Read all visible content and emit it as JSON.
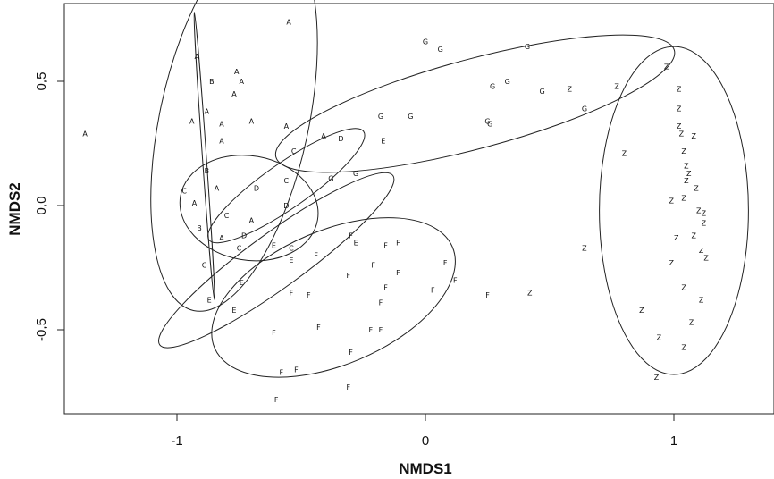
{
  "chart_data": {
    "type": "scatter",
    "title": "",
    "xlabel": "NMDS1",
    "ylabel": "NMDS2",
    "xlim": [
      -1.45,
      1.4
    ],
    "ylim": [
      -0.84,
      0.8
    ],
    "x_ticks": [
      -1,
      0,
      1
    ],
    "y_ticks": [
      -0.5,
      0.0,
      0.5
    ],
    "x_tick_labels": [
      "-1",
      "0",
      "1"
    ],
    "y_tick_labels": [
      "-0,5",
      "0,0",
      "0,5"
    ],
    "grid": false,
    "legend": "none",
    "groups": [
      "A",
      "B",
      "C",
      "D",
      "E",
      "F",
      "G",
      "Z"
    ],
    "points": [
      {
        "g": "A",
        "x": -1.37,
        "y": 0.29
      },
      {
        "g": "A",
        "x": -0.55,
        "y": 0.74
      },
      {
        "g": "A",
        "x": -0.92,
        "y": 0.6
      },
      {
        "g": "A",
        "x": -0.76,
        "y": 0.54
      },
      {
        "g": "A",
        "x": -0.74,
        "y": 0.5
      },
      {
        "g": "A",
        "x": -0.77,
        "y": 0.45
      },
      {
        "g": "A",
        "x": -0.94,
        "y": 0.34
      },
      {
        "g": "A",
        "x": -0.88,
        "y": 0.38
      },
      {
        "g": "A",
        "x": -0.82,
        "y": 0.33
      },
      {
        "g": "A",
        "x": -0.7,
        "y": 0.34
      },
      {
        "g": "A",
        "x": -0.56,
        "y": 0.32
      },
      {
        "g": "A",
        "x": -0.82,
        "y": 0.26
      },
      {
        "g": "A",
        "x": -0.84,
        "y": 0.07
      },
      {
        "g": "A",
        "x": -0.93,
        "y": 0.01
      },
      {
        "g": "A",
        "x": -0.7,
        "y": -0.06
      },
      {
        "g": "A",
        "x": -0.41,
        "y": 0.28
      },
      {
        "g": "A",
        "x": -0.82,
        "y": -0.13
      },
      {
        "g": "B",
        "x": -0.86,
        "y": 0.5
      },
      {
        "g": "B",
        "x": -0.88,
        "y": 0.14
      },
      {
        "g": "B",
        "x": -0.91,
        "y": -0.09
      },
      {
        "g": "C",
        "x": -0.97,
        "y": 0.06
      },
      {
        "g": "C",
        "x": -0.53,
        "y": 0.22
      },
      {
        "g": "C",
        "x": -0.56,
        "y": 0.1
      },
      {
        "g": "C",
        "x": -0.8,
        "y": -0.04
      },
      {
        "g": "C",
        "x": -0.75,
        "y": -0.17
      },
      {
        "g": "C",
        "x": -0.54,
        "y": -0.17
      },
      {
        "g": "C",
        "x": -0.89,
        "y": -0.24
      },
      {
        "g": "D",
        "x": -0.34,
        "y": 0.27
      },
      {
        "g": "D",
        "x": -0.68,
        "y": 0.07
      },
      {
        "g": "D",
        "x": -0.56,
        "y": 0
      },
      {
        "g": "D",
        "x": -0.73,
        "y": -0.12
      },
      {
        "g": "E",
        "x": -0.17,
        "y": 0.26
      },
      {
        "g": "E",
        "x": -0.61,
        "y": -0.16
      },
      {
        "g": "E",
        "x": -0.54,
        "y": -0.22
      },
      {
        "g": "E",
        "x": -0.28,
        "y": -0.15
      },
      {
        "g": "E",
        "x": -0.74,
        "y": -0.31
      },
      {
        "g": "E",
        "x": -0.87,
        "y": -0.38
      },
      {
        "g": "E",
        "x": -0.77,
        "y": -0.42
      },
      {
        "g": "F",
        "x": -0.3,
        "y": -0.12
      },
      {
        "g": "F",
        "x": -0.16,
        "y": -0.16
      },
      {
        "g": "F",
        "x": -0.11,
        "y": -0.15
      },
      {
        "g": "F",
        "x": -0.44,
        "y": -0.2
      },
      {
        "g": "F",
        "x": -0.21,
        "y": -0.24
      },
      {
        "g": "F",
        "x": 0.08,
        "y": -0.23
      },
      {
        "g": "F",
        "x": -0.31,
        "y": -0.28
      },
      {
        "g": "F",
        "x": -0.11,
        "y": -0.27
      },
      {
        "g": "F",
        "x": 0.12,
        "y": -0.3
      },
      {
        "g": "F",
        "x": -0.16,
        "y": -0.33
      },
      {
        "g": "F",
        "x": 0.03,
        "y": -0.34
      },
      {
        "g": "F",
        "x": -0.54,
        "y": -0.35
      },
      {
        "g": "F",
        "x": -0.47,
        "y": -0.36
      },
      {
        "g": "F",
        "x": 0.25,
        "y": -0.36
      },
      {
        "g": "F",
        "x": -0.18,
        "y": -0.39
      },
      {
        "g": "F",
        "x": -0.43,
        "y": -0.49
      },
      {
        "g": "F",
        "x": -0.61,
        "y": -0.51
      },
      {
        "g": "F",
        "x": -0.22,
        "y": -0.5
      },
      {
        "g": "F",
        "x": -0.18,
        "y": -0.5
      },
      {
        "g": "F",
        "x": -0.3,
        "y": -0.59
      },
      {
        "g": "F",
        "x": -0.58,
        "y": -0.67
      },
      {
        "g": "F",
        "x": -0.52,
        "y": -0.66
      },
      {
        "g": "F",
        "x": -0.31,
        "y": -0.73
      },
      {
        "g": "F",
        "x": -0.6,
        "y": -0.78
      },
      {
        "g": "G",
        "x": 0,
        "y": 0.66
      },
      {
        "g": "G",
        "x": 0.06,
        "y": 0.63
      },
      {
        "g": "G",
        "x": 0.41,
        "y": 0.64
      },
      {
        "g": "G",
        "x": 0.33,
        "y": 0.5
      },
      {
        "g": "G",
        "x": 0.27,
        "y": 0.48
      },
      {
        "g": "G",
        "x": 0.47,
        "y": 0.46
      },
      {
        "g": "G",
        "x": 0.64,
        "y": 0.39
      },
      {
        "g": "G",
        "x": -0.18,
        "y": 0.36
      },
      {
        "g": "G",
        "x": -0.06,
        "y": 0.36
      },
      {
        "g": "G",
        "x": 0.25,
        "y": 0.34
      },
      {
        "g": "G",
        "x": 0.26,
        "y": 0.33
      },
      {
        "g": "G",
        "x": -0.38,
        "y": 0.11
      },
      {
        "g": "G",
        "x": -0.28,
        "y": 0.13
      },
      {
        "g": "Z",
        "x": 0.58,
        "y": 0.47
      },
      {
        "g": "Z",
        "x": 0.77,
        "y": 0.48
      },
      {
        "g": "Z",
        "x": 0.97,
        "y": 0.56
      },
      {
        "g": "Z",
        "x": 1.02,
        "y": 0.47
      },
      {
        "g": "Z",
        "x": 1.02,
        "y": 0.39
      },
      {
        "g": "Z",
        "x": 1.02,
        "y": 0.32
      },
      {
        "g": "Z",
        "x": 1.03,
        "y": 0.29
      },
      {
        "g": "Z",
        "x": 1.08,
        "y": 0.28
      },
      {
        "g": "Z",
        "x": 1.04,
        "y": 0.22
      },
      {
        "g": "Z",
        "x": 0.8,
        "y": 0.21
      },
      {
        "g": "Z",
        "x": 1.05,
        "y": 0.16
      },
      {
        "g": "Z",
        "x": 1.06,
        "y": 0.13
      },
      {
        "g": "Z",
        "x": 1.05,
        "y": 0.1
      },
      {
        "g": "Z",
        "x": 1.09,
        "y": 0.07
      },
      {
        "g": "Z",
        "x": 0.99,
        "y": 0.02
      },
      {
        "g": "Z",
        "x": 1.04,
        "y": 0.03
      },
      {
        "g": "Z",
        "x": 1.1,
        "y": -0.02
      },
      {
        "g": "Z",
        "x": 1.12,
        "y": -0.03
      },
      {
        "g": "Z",
        "x": 1.12,
        "y": -0.07
      },
      {
        "g": "Z",
        "x": 1.08,
        "y": -0.12
      },
      {
        "g": "Z",
        "x": 1.01,
        "y": -0.13
      },
      {
        "g": "Z",
        "x": 0.64,
        "y": -0.17
      },
      {
        "g": "Z",
        "x": 1.11,
        "y": -0.18
      },
      {
        "g": "Z",
        "x": 1.13,
        "y": -0.21
      },
      {
        "g": "Z",
        "x": 0.99,
        "y": -0.23
      },
      {
        "g": "Z",
        "x": 0.42,
        "y": -0.35
      },
      {
        "g": "Z",
        "x": 1.04,
        "y": -0.33
      },
      {
        "g": "Z",
        "x": 1.11,
        "y": -0.38
      },
      {
        "g": "Z",
        "x": 0.87,
        "y": -0.42
      },
      {
        "g": "Z",
        "x": 1.07,
        "y": -0.47
      },
      {
        "g": "Z",
        "x": 0.94,
        "y": -0.53
      },
      {
        "g": "Z",
        "x": 1.04,
        "y": -0.57
      },
      {
        "g": "Z",
        "x": 0.93,
        "y": -0.69
      }
    ],
    "ellipses": [
      {
        "g": "A",
        "cx": -0.77,
        "cy": 0.34,
        "rx": 0.78,
        "ry": 0.3,
        "angle": 78
      },
      {
        "g": "C",
        "cx": -0.71,
        "cy": -0.01,
        "rx": 0.28,
        "ry": 0.21,
        "angle": -10
      },
      {
        "g": "D",
        "cx": -0.56,
        "cy": 0.08,
        "rx": 0.38,
        "ry": 0.09,
        "angle": 35
      },
      {
        "g": "E",
        "cx": -0.6,
        "cy": -0.22,
        "rx": 0.58,
        "ry": 0.11,
        "angle": 36
      },
      {
        "g": "F",
        "cx": -0.37,
        "cy": -0.37,
        "rx": 0.52,
        "ry": 0.27,
        "angle": 23
      },
      {
        "g": "G",
        "cx": 0.2,
        "cy": 0.41,
        "rx": 0.83,
        "ry": 0.18,
        "angle": 15
      },
      {
        "g": "Z",
        "cx": 1.0,
        "cy": -0.02,
        "rx": 0.3,
        "ry": 0.66,
        "angle": 0
      },
      {
        "g": "B",
        "cx": -0.89,
        "cy": 0.2,
        "rx": 0.58,
        "ry": 0.008,
        "angle": -86
      }
    ]
  }
}
